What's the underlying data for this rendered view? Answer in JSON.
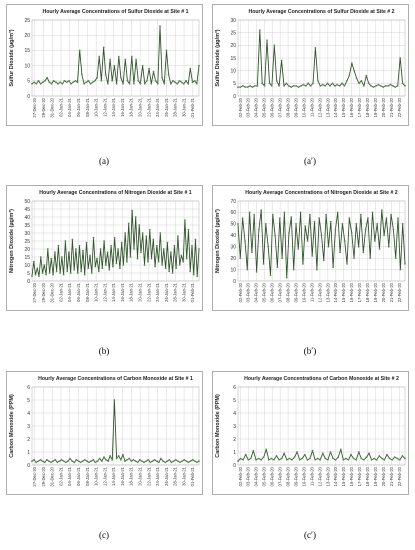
{
  "panels": [
    {
      "caption": "(a)",
      "chart_data": {
        "type": "line",
        "title": "Hourly Average Concentrations of Sulfur Dioxide at Site # 1",
        "ylabel": "Sulfur Dioxide (µg/m³)",
        "xlabel": "",
        "ylim": [
          0,
          25
        ],
        "yticks": [
          0,
          5,
          10,
          15,
          20,
          25
        ],
        "xticks": [
          "27-Dec-20",
          "29-Dec-20",
          "31-Dec-20",
          "02-Jan-21",
          "04-Jan-21",
          "06-Jan-21",
          "08-Jan-21",
          "10-Jan-21",
          "12-Jan-21",
          "14-Jan-21",
          "16-Jan-21",
          "18-Jan-21",
          "20-Jan-21",
          "22-Jan-21",
          "24-Jan-21",
          "26-Jan-21",
          "28-Jan-21",
          "30-Jan-21",
          "01-Feb-21"
        ],
        "grid": true,
        "series": [
          {
            "values": [
              4,
              4.5,
              4,
              5,
              4,
              4.5,
              5,
              6,
              4.5,
              4,
              5,
              4.5,
              4,
              4.5,
              4,
              5,
              4.5,
              5,
              4,
              4.5,
              5,
              4.5,
              15,
              7,
              4,
              4.5,
              5,
              4,
              4.5,
              5,
              6,
              13,
              5,
              16,
              7,
              4,
              12,
              5,
              10,
              4,
              13,
              6,
              4,
              12,
              5,
              4,
              13,
              4,
              12,
              5,
              4,
              10,
              4,
              5,
              9,
              4,
              8,
              5,
              4,
              23,
              6,
              4,
              15,
              7,
              4,
              5,
              4.5,
              4,
              5,
              4.5,
              4,
              5,
              4,
              9,
              4.5,
              5,
              4,
              10
            ]
          }
        ]
      }
    },
    {
      "caption": "(a′)",
      "chart_data": {
        "type": "line",
        "title": "Hourly Average Concentrations of Sulfur Dioxide at Site # 2",
        "ylabel": "Sulfur Dioxide (µg/m³)",
        "xlabel": "",
        "ylim": [
          0,
          30
        ],
        "yticks": [
          0,
          5,
          10,
          15,
          20,
          25,
          30
        ],
        "xticks": [
          "02-Feb-20",
          "03-Feb-20",
          "04-Feb-20",
          "05-Feb-20",
          "06-Feb-20",
          "07-Feb-20",
          "08-Feb-20",
          "09-Feb-20",
          "10-Feb-20",
          "11-Feb-20",
          "12-Feb-20",
          "13-Feb-20",
          "14-Feb-20",
          "15-Feb-20",
          "16-Feb-20",
          "17-Feb-20",
          "18-Feb-20",
          "19-Feb-20",
          "20-Feb-20",
          "21-Feb-20",
          "22-Feb-20"
        ],
        "grid": true,
        "series": [
          {
            "values": [
              3.5,
              3.5,
              4,
              3.5,
              3.5,
              4,
              3.5,
              4,
              4,
              26,
              5,
              4,
              22,
              5,
              4,
              20,
              6,
              4,
              14,
              4,
              5,
              4,
              3.5,
              4,
              4,
              3.5,
              4,
              4.5,
              4,
              5,
              4,
              5,
              19,
              6,
              4,
              4.5,
              4,
              5,
              4,
              5,
              4,
              4.5,
              4,
              5,
              4,
              6,
              8,
              13,
              10,
              7,
              5,
              6,
              4,
              8,
              5,
              4,
              3.5,
              4,
              4.5,
              4,
              3.5,
              4,
              4,
              4.5,
              4,
              3.5,
              4,
              15,
              5,
              4
            ]
          }
        ]
      }
    },
    {
      "caption": "(b)",
      "chart_data": {
        "type": "line",
        "title": "Hourly Average Concentrations of Nitrogen Dioxide at Site # 1",
        "ylabel": "Nitrogen Dioxide (µg/m³)",
        "xlabel": "",
        "ylim": [
          0,
          50
        ],
        "yticks": [
          0,
          5,
          10,
          15,
          20,
          25,
          30,
          35,
          40,
          45,
          50
        ],
        "xticks": [
          "27-Dec-20",
          "29-Dec-20",
          "31-Dec-20",
          "02-Jan-21",
          "04-Jan-21",
          "06-Jan-21",
          "08-Jan-21",
          "10-Jan-21",
          "12-Jan-21",
          "14-Jan-21",
          "16-Jan-21",
          "18-Jan-21",
          "20-Jan-21",
          "22-Jan-21",
          "24-Jan-21",
          "26-Jan-21",
          "28-Jan-21",
          "30-Jan-21",
          "01-Feb-21"
        ],
        "grid": true,
        "series": [
          {
            "values": [
              3,
              12,
              4,
              8,
              3,
              15,
              5,
              10,
              4,
              20,
              5,
              14,
              4,
              18,
              6,
              22,
              5,
              15,
              4,
              25,
              6,
              18,
              5,
              26,
              7,
              20,
              5,
              22,
              6,
              19,
              4,
              24,
              8,
              16,
              5,
              27,
              9,
              14,
              6,
              20,
              8,
              25,
              10,
              18,
              7,
              22,
              9,
              27,
              11,
              20,
              8,
              24,
              10,
              30,
              12,
              36,
              15,
              44,
              20,
              40,
              14,
              35,
              18,
              30,
              10,
              28,
              12,
              32,
              14,
              26,
              9,
              22,
              12,
              30,
              10,
              20,
              8,
              24,
              6,
              18,
              5,
              22,
              8,
              28,
              10,
              16,
              12,
              38,
              14,
              32,
              6,
              22,
              4,
              26,
              3,
              20
            ]
          }
        ]
      }
    },
    {
      "caption": "(b′)",
      "chart_data": {
        "type": "line",
        "title": "Hourly Average Concentrations of Nitrogen Dioxide at Site # 2",
        "ylabel": "Nitrogen Dioxide (µg/m³)",
        "xlabel": "",
        "ylim": [
          0,
          70
        ],
        "yticks": [
          0,
          10,
          20,
          30,
          40,
          50,
          60,
          70
        ],
        "xticks": [
          "02-Feb-20",
          "03-Feb-20",
          "04-Feb-20",
          "05-Feb-20",
          "06-Feb-20",
          "07-Feb-20",
          "08-Feb-20",
          "09-Feb-20",
          "10-Feb-20",
          "11-Feb-20",
          "12-Feb-20",
          "13-Feb-20",
          "14-Feb-20",
          "15-Feb-20",
          "16-Feb-20",
          "17-Feb-20",
          "18-Feb-20",
          "19-Feb-20",
          "20-Feb-20",
          "21-Feb-20",
          "22-Feb-20"
        ],
        "grid": true,
        "series": [
          {
            "values": [
              50,
              20,
              55,
              35,
              10,
              60,
              25,
              58,
              8,
              45,
              62,
              15,
              50,
              30,
              5,
              58,
              40,
              12,
              55,
              20,
              60,
              3,
              42,
              56,
              10,
              50,
              28,
              60,
              15,
              48,
              35,
              58,
              22,
              52,
              10,
              55,
              40,
              18,
              58,
              30,
              52,
              12,
              45,
              60,
              25,
              50,
              35,
              15,
              55,
              42,
              20,
              50,
              30,
              58,
              25,
              45,
              55,
              20,
              60,
              35,
              50,
              28,
              62,
              40,
              55,
              30,
              58,
              45,
              20,
              55,
              10,
              50,
              15
            ]
          }
        ]
      }
    },
    {
      "caption": "(c)",
      "chart_data": {
        "type": "line",
        "title": "Hourly Average Concentrations of Carbon Monoxide at Site # 1",
        "ylabel": "Carbon Monoxide (PPM)",
        "xlabel": "",
        "ylim": [
          0,
          6
        ],
        "yticks": [
          0,
          1,
          2,
          3,
          4,
          5,
          6
        ],
        "xticks": [
          "27-Dec-20",
          "29-Dec-20",
          "31-Dec-20",
          "02-Jan-21",
          "04-Jan-21",
          "06-Jan-21",
          "08-Jan-21",
          "10-Jan-21",
          "12-Jan-21",
          "14-Jan-21",
          "16-Jan-21",
          "18-Jan-21",
          "20-Jan-21",
          "22-Jan-21",
          "24-Jan-21",
          "26-Jan-21",
          "28-Jan-21",
          "30-Jan-21",
          "01-Feb-21"
        ],
        "grid": true,
        "series": [
          {
            "values": [
              0.3,
              0.4,
              0.2,
              0.3,
              0.4,
              0.3,
              0.2,
              0.4,
              0.3,
              0.2,
              0.3,
              0.4,
              0.2,
              0.3,
              0.4,
              0.3,
              0.2,
              0.3,
              0.5,
              0.3,
              0.2,
              0.4,
              0.3,
              0.2,
              0.3,
              0.4,
              0.3,
              0.2,
              0.3,
              0.4,
              0.2,
              0.3,
              0.5,
              0.3,
              0.6,
              0.4,
              0.3,
              0.7,
              0.4,
              5.0,
              0.5,
              0.7,
              0.4,
              0.8,
              0.3,
              0.4,
              0.5,
              0.3,
              0.4,
              0.3,
              0.2,
              0.4,
              0.3,
              0.2,
              0.3,
              0.4,
              0.2,
              0.3,
              0.4,
              0.3,
              0.2,
              0.5,
              0.3,
              0.2,
              0.3,
              0.4,
              0.2,
              0.3,
              0.4,
              0.3,
              0.2,
              0.3,
              0.4,
              0.3,
              0.2,
              0.3,
              0.4,
              0.3,
              0.2,
              0.3
            ]
          }
        ]
      }
    },
    {
      "caption": "(c′)",
      "chart_data": {
        "type": "line",
        "title": "Hourly Average Concentrations of Carbon Monoxide at Site # 2",
        "ylabel": "Carbon Monoxide (PPM)",
        "xlabel": "",
        "ylim": [
          0,
          6
        ],
        "yticks": [
          0,
          1,
          2,
          3,
          4,
          5,
          6
        ],
        "xticks": [
          "02-Feb-20",
          "03-Feb-20",
          "04-Feb-20",
          "05-Feb-20",
          "06-Feb-20",
          "07-Feb-20",
          "08-Feb-20",
          "09-Feb-20",
          "10-Feb-20",
          "11-Feb-20",
          "12-Feb-20",
          "13-Feb-20",
          "14-Feb-20",
          "15-Feb-20",
          "16-Feb-20",
          "17-Feb-20",
          "18-Feb-20",
          "19-Feb-20",
          "20-Feb-20",
          "21-Feb-20",
          "22-Feb-20"
        ],
        "grid": true,
        "series": [
          {
            "values": [
              0.3,
              0.5,
              0.4,
              0.8,
              0.4,
              0.5,
              1.1,
              0.4,
              0.5,
              0.4,
              0.6,
              1.2,
              0.4,
              0.5,
              0.4,
              0.7,
              0.4,
              0.5,
              0.9,
              0.4,
              0.5,
              0.4,
              0.6,
              1.0,
              0.4,
              0.5,
              0.8,
              0.4,
              0.5,
              1.1,
              0.4,
              0.5,
              0.4,
              0.9,
              0.5,
              0.4,
              1.0,
              0.5,
              0.4,
              0.6,
              1.2,
              0.4,
              0.5,
              0.4,
              0.8,
              0.5,
              0.4,
              1.0,
              0.5,
              0.4,
              0.6,
              0.9,
              0.4,
              0.5,
              0.4,
              0.7,
              0.5,
              0.4,
              0.8,
              0.5,
              0.4,
              0.6,
              0.5,
              0.4,
              0.7,
              0.5
            ]
          }
        ]
      }
    }
  ],
  "colors": {
    "line": "#33552e",
    "marker": "#5a8a52",
    "grid": "#d4d4d4",
    "frame": "#9a9a9a"
  }
}
